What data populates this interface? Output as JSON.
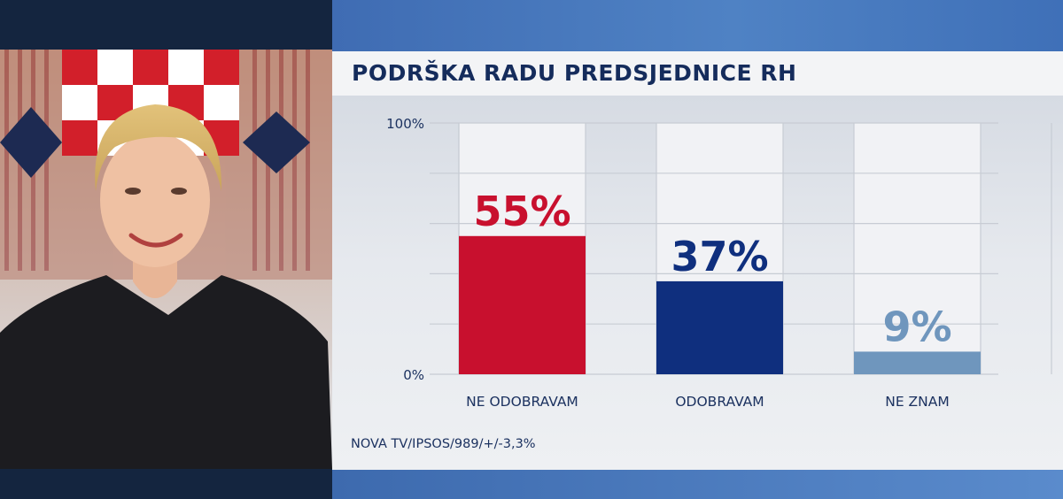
{
  "photo": {
    "alt": "Portrait",
    "background_icon": "croatian-coat-of-arms"
  },
  "title": "PODRŠKA RADU PREDSJEDNICE RH",
  "source": "NOVA TV/IPSOS/989/+/-3,3%",
  "colors": {
    "title": "#152c5c",
    "ne_odobravam": "#c8102e",
    "odobravam": "#0f2f7e",
    "ne_znam": "#6f96bd",
    "labels": "#1c3260"
  },
  "chart_data": {
    "type": "bar",
    "title": "PODRŠKA RADU PREDSJEDNICE RH",
    "categories": [
      "NE ODOBRAVAM",
      "ODOBRAVAM",
      "NE ZNAM"
    ],
    "values": [
      55,
      37,
      9
    ],
    "value_labels": [
      "55%",
      "37%",
      "9%"
    ],
    "bar_colors": [
      "#c8102e",
      "#0f2f7e",
      "#6f96bd"
    ],
    "ylim": [
      0,
      100
    ],
    "y_ticks": [
      {
        "value": 100,
        "label": "100%"
      },
      {
        "value": 0,
        "label": "0%"
      }
    ],
    "grid": true,
    "legend": "none"
  }
}
